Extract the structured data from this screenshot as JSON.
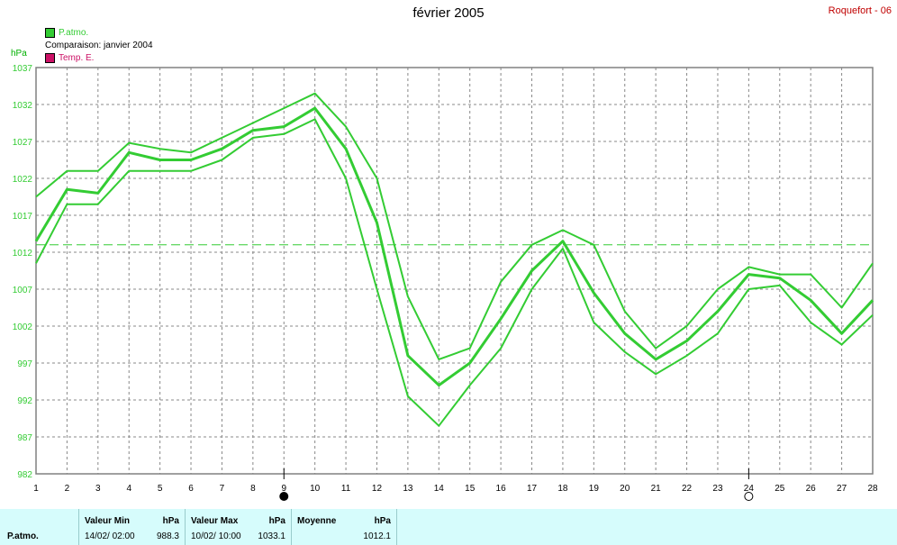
{
  "title": "février 2005",
  "station": "Roquefort - 06",
  "legend": [
    {
      "label": "P.atmo.",
      "color": "#33cc33",
      "swatch": true
    },
    {
      "label": "Comparaison: janvier 2004",
      "color": "#000000",
      "swatch": false
    },
    {
      "label": "Temp. E.",
      "color": "#cc1166",
      "swatch": true
    }
  ],
  "unit": "hPa",
  "chart_data": {
    "type": "line",
    "x": [
      1,
      2,
      3,
      4,
      5,
      6,
      7,
      8,
      9,
      10,
      11,
      12,
      13,
      14,
      15,
      16,
      17,
      18,
      19,
      20,
      21,
      22,
      23,
      24,
      25,
      26,
      27,
      28
    ],
    "ylim": [
      982,
      1037
    ],
    "yticks": [
      982,
      987,
      992,
      997,
      1002,
      1007,
      1012,
      1017,
      1022,
      1027,
      1032,
      1037
    ],
    "reference_line": 1013,
    "grid": true,
    "series": [
      {
        "values": [
          1019.5,
          1023,
          1023,
          1026.8,
          1026,
          1025.5,
          1027.5,
          1029.5,
          1031.5,
          1033.5,
          1029,
          1022,
          1006,
          997.5,
          999,
          1008,
          1013,
          1015,
          1013,
          1004,
          999,
          1002,
          1007,
          1010,
          1009,
          1009,
          1004.5,
          1010.5
        ],
        "width": 2
      },
      {
        "values": [
          1013.5,
          1020.5,
          1020,
          1025.5,
          1024.5,
          1024.5,
          1026,
          1028.5,
          1029,
          1031.5,
          1026,
          1016,
          998,
          994,
          997,
          1003,
          1009.5,
          1013.5,
          1006.5,
          1001,
          997.5,
          1000,
          1004,
          1009,
          1008.5,
          1005.5,
          1001,
          1005.5
        ],
        "width": 3
      },
      {
        "values": [
          1010.5,
          1018.5,
          1018.5,
          1023,
          1023,
          1023,
          1024.5,
          1027.5,
          1028,
          1030,
          1022,
          1007,
          992.5,
          988.5,
          994,
          999,
          1007,
          1012.5,
          1002.5,
          998.5,
          995.5,
          998,
          1001,
          1007,
          1007.5,
          1002.5,
          999.5,
          1003.5
        ],
        "width": 2
      }
    ],
    "markers": [
      {
        "x": 9,
        "symbol": "filled-circle"
      },
      {
        "x": 24,
        "symbol": "open-circle"
      }
    ]
  },
  "stats": {
    "row_label": "P.atmo.",
    "min_header": "Valeur Min",
    "min_unit": "hPa",
    "min_date": "14/02/  02:00",
    "min_value": "988.3",
    "max_header": "Valeur Max",
    "max_unit": "hPa",
    "max_date": "10/02/  10:00",
    "max_value": "1033.1",
    "avg_header": "Moyenne",
    "avg_unit": "hPa",
    "avg_value": "1012.1"
  }
}
